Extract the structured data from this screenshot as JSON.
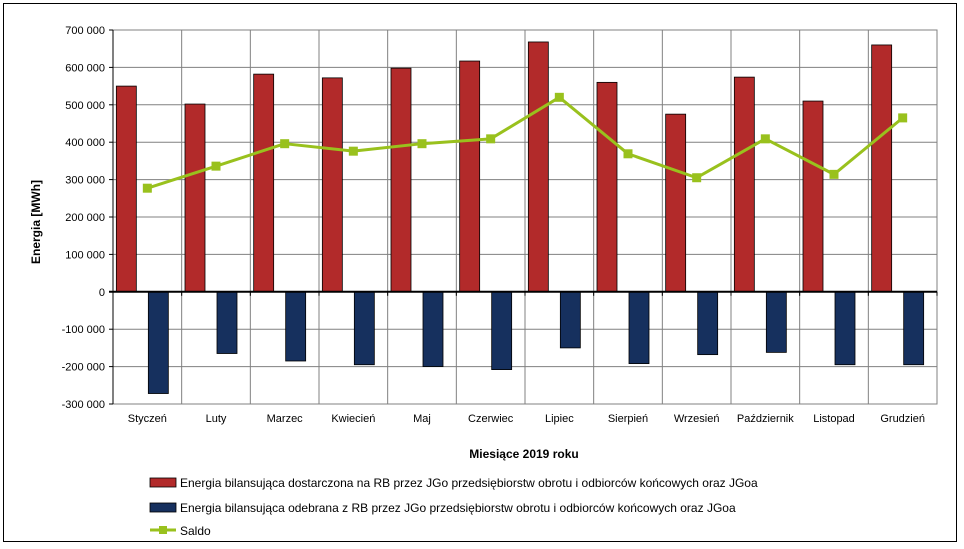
{
  "chart_data": {
    "type": "bar",
    "xlabel": "Miesiące 2019  roku",
    "ylabel": "Energia [MWh]",
    "ylim": [
      -300000,
      700000
    ],
    "yticks": [
      700000,
      600000,
      500000,
      400000,
      300000,
      200000,
      100000,
      0,
      -100000,
      -200000,
      -300000
    ],
    "ytick_labels": [
      "700 000",
      "600 000",
      "500 000",
      "400 000",
      "300 000",
      "200 000",
      "100 000",
      "0",
      "-100 000",
      "-200 000",
      "-300 000"
    ],
    "grid": true,
    "legend_position": "bottom",
    "categories": [
      "Styczeń",
      "Luty",
      "Marzec",
      "Kwiecień",
      "Maj",
      "Czerwiec",
      "Lipiec",
      "Sierpień",
      "Wrzesień",
      "Październik",
      "Listopad",
      "Grudzień"
    ],
    "series": [
      {
        "name": "Energia bilansująca dostarczona na RB przez JGo przedsiębiorstw obrotu i odbiorców końcowych oraz JGoa",
        "type": "bar",
        "color": "#b22a2a",
        "values": [
          550000,
          502000,
          582000,
          572000,
          598000,
          617000,
          668000,
          560000,
          475000,
          574000,
          510000,
          660000
        ]
      },
      {
        "name": "Energia bilansująca odebrana z RB przez JGo przedsiębiorstw obrotu i odbiorców końcowych oraz JGoa",
        "type": "bar",
        "color": "#16305e",
        "values": [
          -272000,
          -165000,
          -185000,
          -195000,
          -200000,
          -208000,
          -150000,
          -192000,
          -168000,
          -162000,
          -195000,
          -195000
        ]
      },
      {
        "name": "Saldo",
        "type": "line",
        "color": "#99c11d",
        "values": [
          277000,
          336000,
          396000,
          376000,
          396000,
          409000,
          520000,
          369000,
          305000,
          409000,
          314000,
          465000
        ]
      }
    ]
  }
}
